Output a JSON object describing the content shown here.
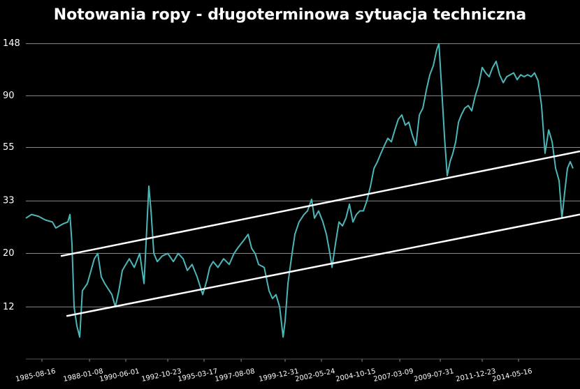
{
  "chart_data": {
    "type": "line",
    "title": "Notowania ropy - długoterminowa sytuacja techniczna",
    "log_scale_y": true,
    "grid": true,
    "xlim": [
      1984.65,
      2018.08
    ],
    "ylim": [
      7.3,
      161
    ],
    "yticks": [
      12,
      20,
      33,
      55,
      90,
      148
    ],
    "xticks": [
      {
        "value": 1985.62,
        "label": "1985-08-16"
      },
      {
        "value": 1988.49,
        "label": "1988-01-08"
      },
      {
        "value": 1990.68,
        "label": "1990-06-01"
      },
      {
        "value": 1993.21,
        "label": "1992-10-23"
      },
      {
        "value": 1995.4,
        "label": "1995-03-17"
      },
      {
        "value": 1997.64,
        "label": "1997-08-08"
      },
      {
        "value": 2000.29,
        "label": "1999-12-31"
      },
      {
        "value": 2002.48,
        "label": "2002-05-24"
      },
      {
        "value": 2004.93,
        "label": "2004-10-15"
      },
      {
        "value": 2007.21,
        "label": "2007-03-09"
      },
      {
        "value": 2009.65,
        "label": "2009-07-31"
      },
      {
        "value": 2012.18,
        "label": "2011-12-23"
      },
      {
        "value": 2014.37,
        "label": "2014-05-16"
      }
    ],
    "x": [
      1984.65,
      1984.99,
      1985.41,
      1985.83,
      1986.25,
      1986.46,
      1986.88,
      1987.18,
      1987.31,
      1987.43,
      1987.56,
      1987.73,
      1987.9,
      1988.06,
      1988.36,
      1988.78,
      1988.99,
      1989.2,
      1989.41,
      1989.84,
      1990.05,
      1990.26,
      1990.47,
      1990.68,
      1990.89,
      1991.19,
      1991.52,
      1991.78,
      1991.94,
      1992.07,
      1992.2,
      1992.37,
      1992.58,
      1992.87,
      1993.21,
      1993.55,
      1993.84,
      1994.14,
      1994.39,
      1994.68,
      1994.98,
      1995.32,
      1995.57,
      1995.74,
      1995.95,
      1996.24,
      1996.58,
      1996.92,
      1997.21,
      1997.42,
      1997.76,
      1998.06,
      1998.27,
      1998.48,
      1998.69,
      1999.03,
      1999.32,
      1999.53,
      1999.74,
      1999.96,
      2000.17,
      2000.29,
      2000.46,
      2000.71,
      2000.88,
      2001.13,
      2001.43,
      2001.64,
      2001.89,
      2002.06,
      2002.31,
      2002.57,
      2002.78,
      2002.99,
      2003.12,
      2003.33,
      2003.54,
      2003.75,
      2003.96,
      2004.17,
      2004.38,
      2004.59,
      2004.8,
      2005.01,
      2005.22,
      2005.44,
      2005.65,
      2005.86,
      2006.07,
      2006.28,
      2006.49,
      2006.7,
      2006.91,
      2007.12,
      2007.33,
      2007.54,
      2007.75,
      2007.96,
      2008.18,
      2008.39,
      2008.6,
      2008.81,
      2009.02,
      2009.23,
      2009.44,
      2009.57,
      2009.74,
      2009.91,
      2010.07,
      2010.24,
      2010.41,
      2010.58,
      2010.75,
      2010.92,
      2011.13,
      2011.34,
      2011.55,
      2011.76,
      2011.97,
      2012.18,
      2012.39,
      2012.6,
      2012.81,
      2013.02,
      2013.23,
      2013.45,
      2013.66,
      2013.87,
      2014.08,
      2014.29,
      2014.5,
      2014.71,
      2014.92,
      2015.13,
      2015.34,
      2015.55,
      2015.76,
      2015.97,
      2016.19,
      2016.4,
      2016.61,
      2016.82,
      2016.99,
      2017.16,
      2017.32,
      2017.49,
      2017.66
    ],
    "series": [
      {
        "color": "#4db6b8",
        "values": [
          28,
          29,
          28.5,
          27.5,
          27,
          25.5,
          26.5,
          27,
          29,
          22,
          12,
          10,
          9,
          14,
          15,
          19,
          20,
          16,
          15,
          13.5,
          12,
          14,
          17,
          18,
          19,
          17.5,
          20,
          15,
          25,
          38,
          30,
          20,
          18.5,
          19.5,
          20,
          18.5,
          20,
          19,
          17,
          18,
          16,
          13.5,
          15.5,
          17.5,
          18.5,
          17.5,
          19,
          18,
          20,
          21,
          22.5,
          24,
          21,
          20,
          18,
          17.5,
          14,
          13,
          13.5,
          12,
          9,
          10.5,
          15,
          20,
          24,
          27,
          29,
          30,
          33.5,
          28,
          30,
          27,
          24,
          20,
          17.5,
          22,
          27,
          26,
          28,
          32,
          27,
          29,
          30,
          30,
          33,
          38,
          45,
          48,
          52,
          56,
          60,
          58,
          65,
          72,
          75,
          68,
          70,
          62,
          56,
          75,
          80,
          95,
          110,
          120,
          140,
          148,
          95,
          60,
          42,
          48,
          52,
          58,
          70,
          75,
          80,
          82,
          78,
          90,
          100,
          118,
          112,
          108,
          118,
          125,
          110,
          102,
          108,
          110,
          112,
          105,
          110,
          108,
          110,
          108,
          112,
          104,
          82,
          52,
          65,
          58,
          45,
          40,
          28,
          36,
          45,
          48,
          45
        ]
      }
    ],
    "trendlines": [
      {
        "color": "#ffffff",
        "x": [
          1986.76,
          2018.08
        ],
        "values": [
          19.5,
          53
        ]
      },
      {
        "color": "#ffffff",
        "x": [
          1987.1,
          2018.08
        ],
        "values": [
          11,
          29
        ]
      }
    ]
  }
}
